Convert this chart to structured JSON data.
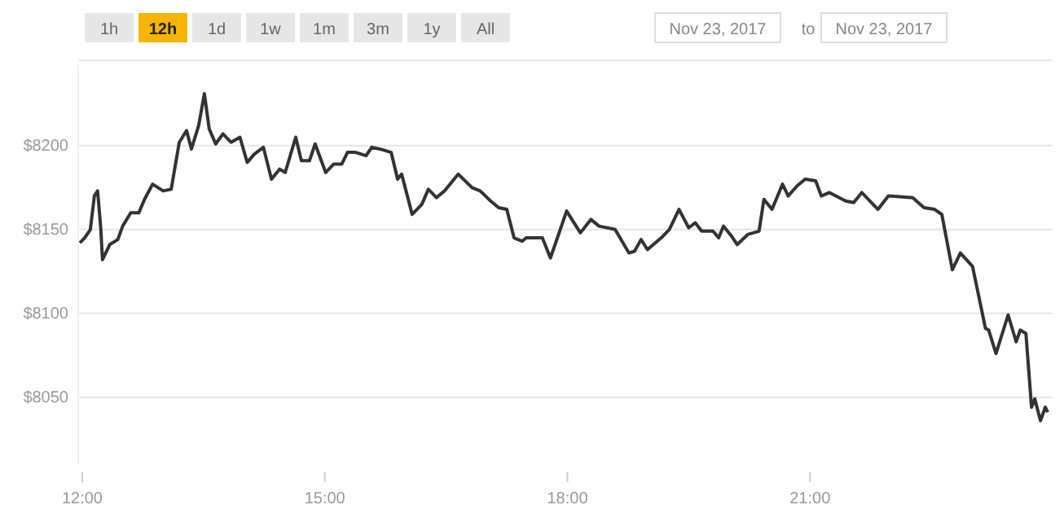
{
  "chart_data": {
    "type": "line",
    "annotations": [
      "1h",
      "12h",
      "1d",
      "1w",
      "1m",
      "3m",
      "1y",
      "All",
      "Nov 23, 2017",
      "to",
      "Nov 23, 2017"
    ],
    "x": [
      11.97,
      12.03,
      12.1,
      12.15,
      12.19,
      12.23,
      12.25,
      12.34,
      12.44,
      12.5,
      12.6,
      12.7,
      12.77,
      12.87,
      13.0,
      13.1,
      13.2,
      13.29,
      13.35,
      13.44,
      13.51,
      13.57,
      13.65,
      13.74,
      13.84,
      13.95,
      14.04,
      14.13,
      14.24,
      14.34,
      14.44,
      14.51,
      14.64,
      14.71,
      14.81,
      14.88,
      15.01,
      15.11,
      15.21,
      15.28,
      15.38,
      15.51,
      15.58,
      15.68,
      15.82,
      15.9,
      15.95,
      16.08,
      16.2,
      16.28,
      16.38,
      16.48,
      16.65,
      16.82,
      16.92,
      17.05,
      17.15,
      17.25,
      17.34,
      17.44,
      17.49,
      17.69,
      17.79,
      17.99,
      18.16,
      18.29,
      18.39,
      18.59,
      18.76,
      18.83,
      18.91,
      18.99,
      19.16,
      19.26,
      19.38,
      19.5,
      19.58,
      19.66,
      19.8,
      19.87,
      19.93,
      20.03,
      20.1,
      20.23,
      20.37,
      20.43,
      20.53,
      20.66,
      20.73,
      20.84,
      20.94,
      21.07,
      21.14,
      21.24,
      21.44,
      21.54,
      21.64,
      21.84,
      21.97,
      22.27,
      22.41,
      22.54,
      22.63,
      22.76,
      22.86,
      23.01,
      23.17,
      23.21,
      23.3,
      23.45,
      23.55,
      23.6,
      23.67,
      23.74,
      23.78,
      23.85,
      23.91,
      23.94
    ],
    "series": [
      {
        "color": "#333333",
        "values": [
          8142,
          8145,
          8150,
          8170,
          8173,
          8150,
          8132,
          8141,
          8144,
          8152,
          8160,
          8160,
          8168,
          8177,
          8173,
          8174,
          8202,
          8209,
          8198,
          8212,
          8231,
          8210,
          8201,
          8207,
          8202,
          8205,
          8190,
          8195,
          8199,
          8180,
          8186,
          8184,
          8205,
          8191,
          8191,
          8201,
          8184,
          8189,
          8189,
          8196,
          8196,
          8194,
          8199,
          8198,
          8196,
          8180,
          8183,
          8159,
          8165,
          8174,
          8169,
          8173,
          8183,
          8175,
          8173,
          8167,
          8163,
          8162,
          8145,
          8143,
          8145,
          8145,
          8133,
          8161,
          8148,
          8156,
          8152,
          8150,
          8136,
          8137,
          8144,
          8138,
          8145,
          8150,
          8162,
          8151,
          8154,
          8149,
          8149,
          8145,
          8152,
          8146,
          8141,
          8147,
          8149,
          8168,
          8162,
          8177,
          8170,
          8176,
          8180,
          8179,
          8170,
          8172,
          8167,
          8166,
          8172,
          8162,
          8170,
          8169,
          8163,
          8162,
          8159,
          8126,
          8136,
          8128,
          8091,
          8090,
          8076,
          8099,
          8083,
          8090,
          8088,
          8044,
          8049,
          8036,
          8044,
          8041
        ]
      }
    ],
    "xlim": [
      11.95,
      24.0
    ],
    "xticks": [
      {
        "value": 12,
        "label": "12:00"
      },
      {
        "value": 15,
        "label": "15:00"
      },
      {
        "value": 18,
        "label": "18:00"
      },
      {
        "value": 21,
        "label": "21:00"
      }
    ],
    "ylim": [
      8010,
      8248
    ],
    "yticks": [
      {
        "value": 8050,
        "label": "$8050"
      },
      {
        "value": 8100,
        "label": "$8100"
      },
      {
        "value": 8150,
        "label": "$8150"
      },
      {
        "value": 8200,
        "label": "$8200"
      }
    ],
    "grid": "y",
    "marker": "none",
    "line_style": "solid"
  }
}
